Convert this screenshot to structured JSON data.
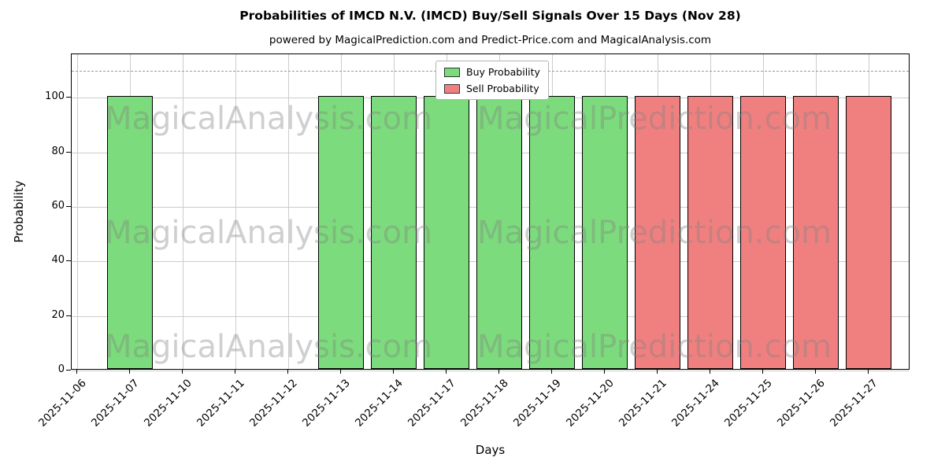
{
  "title": "Probabilities of IMCD N.V. (IMCD) Buy/Sell Signals Over 15 Days (Nov 28)",
  "subtitle": "powered by MagicalPrediction.com and Predict-Price.com and MagicalAnalysis.com",
  "watermark": {
    "left_text": "MagicalAnalysis.com",
    "right_text": "MagicalPrediction.com"
  },
  "legend": [
    {
      "label": "Buy Probability",
      "color": "#7cdb7c"
    },
    {
      "label": "Sell Probability",
      "color": "#f08080"
    }
  ],
  "chart_data": {
    "type": "bar",
    "title": "Probabilities of IMCD N.V. (IMCD) Buy/Sell Signals Over 15 Days (Nov 28)",
    "xlabel": "Days",
    "ylabel": "Probability",
    "ylim": [
      0,
      116
    ],
    "yticks": [
      0,
      20,
      40,
      60,
      80,
      100
    ],
    "dashed_line_y": 110,
    "grid": true,
    "legend_position": "top-center",
    "categories": [
      "2025-11-06",
      "2025-11-07",
      "2025-11-10",
      "2025-11-11",
      "2025-11-12",
      "2025-11-13",
      "2025-11-14",
      "2025-11-17",
      "2025-11-18",
      "2025-11-19",
      "2025-11-20",
      "2025-11-21",
      "2025-11-24",
      "2025-11-25",
      "2025-11-26",
      "2025-11-27"
    ],
    "series": [
      {
        "name": "Buy Probability",
        "color": "#7cdb7c",
        "values": [
          0,
          100,
          0,
          0,
          0,
          100,
          100,
          100,
          100,
          100,
          100,
          0,
          0,
          0,
          0,
          0
        ]
      },
      {
        "name": "Sell Probability",
        "color": "#f08080",
        "values": [
          0,
          0,
          0,
          0,
          0,
          0,
          0,
          0,
          0,
          0,
          0,
          100,
          100,
          100,
          100,
          100
        ]
      }
    ]
  }
}
